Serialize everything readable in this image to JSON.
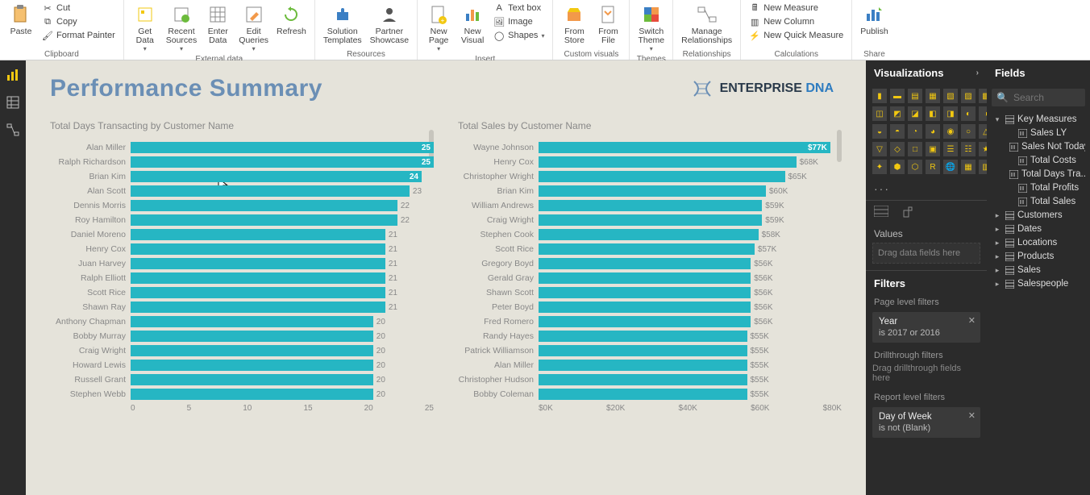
{
  "ribbon": {
    "clipboard": {
      "label": "Clipboard",
      "paste": "Paste",
      "cut": "Cut",
      "copy": "Copy",
      "format_painter": "Format Painter"
    },
    "external_data": {
      "label": "External data",
      "get_data": "Get\nData",
      "recent_sources": "Recent\nSources",
      "enter_data": "Enter\nData",
      "edit_queries": "Edit\nQueries",
      "refresh": "Refresh"
    },
    "resources": {
      "label": "Resources",
      "solution_templates": "Solution\nTemplates",
      "partner_showcase": "Partner\nShowcase"
    },
    "insert": {
      "label": "Insert",
      "new_page": "New\nPage",
      "new_visual": "New\nVisual",
      "text_box": "Text box",
      "image": "Image",
      "shapes": "Shapes"
    },
    "custom_visuals": {
      "label": "Custom visuals",
      "from_store": "From\nStore",
      "from_file": "From\nFile"
    },
    "themes": {
      "label": "Themes",
      "switch_theme": "Switch\nTheme"
    },
    "relationships": {
      "label": "Relationships",
      "manage": "Manage\nRelationships"
    },
    "calculations": {
      "label": "Calculations",
      "new_measure": "New Measure",
      "new_column": "New Column",
      "new_quick": "New Quick Measure"
    },
    "share": {
      "label": "Share",
      "publish": "Publish"
    }
  },
  "canvas": {
    "title": "Performance Summary",
    "logo_main": "ENTERPRISE",
    "logo_accent": "DNA",
    "chart1": {
      "title": "Total Days Transacting by Customer Name",
      "bar_color": "#26b6c3",
      "max": 25,
      "ticks": [
        "0",
        "5",
        "10",
        "15",
        "20",
        "25"
      ],
      "data": [
        {
          "name": "Alan Miller",
          "v": 25,
          "label": "25",
          "inside": true
        },
        {
          "name": "Ralph Richardson",
          "v": 25,
          "label": "25",
          "inside": true
        },
        {
          "name": "Brian Kim",
          "v": 24,
          "label": "24",
          "inside": true
        },
        {
          "name": "Alan Scott",
          "v": 23,
          "label": "23",
          "inside": false
        },
        {
          "name": "Dennis Morris",
          "v": 22,
          "label": "22",
          "inside": false
        },
        {
          "name": "Roy Hamilton",
          "v": 22,
          "label": "22",
          "inside": false
        },
        {
          "name": "Daniel Moreno",
          "v": 21,
          "label": "21",
          "inside": false
        },
        {
          "name": "Henry Cox",
          "v": 21,
          "label": "21",
          "inside": false
        },
        {
          "name": "Juan Harvey",
          "v": 21,
          "label": "21",
          "inside": false
        },
        {
          "name": "Ralph Elliott",
          "v": 21,
          "label": "21",
          "inside": false
        },
        {
          "name": "Scott Rice",
          "v": 21,
          "label": "21",
          "inside": false
        },
        {
          "name": "Shawn Ray",
          "v": 21,
          "label": "21",
          "inside": false
        },
        {
          "name": "Anthony Chapman",
          "v": 20,
          "label": "20",
          "inside": false
        },
        {
          "name": "Bobby Murray",
          "v": 20,
          "label": "20",
          "inside": false
        },
        {
          "name": "Craig Wright",
          "v": 20,
          "label": "20",
          "inside": false
        },
        {
          "name": "Howard Lewis",
          "v": 20,
          "label": "20",
          "inside": false
        },
        {
          "name": "Russell Grant",
          "v": 20,
          "label": "20",
          "inside": false
        },
        {
          "name": "Stephen Webb",
          "v": 20,
          "label": "20",
          "inside": false
        }
      ]
    },
    "chart2": {
      "title": "Total Sales by Customer Name",
      "bar_color": "#26b6c3",
      "max": 80,
      "ticks": [
        "$0K",
        "$20K",
        "$40K",
        "$60K",
        "$80K"
      ],
      "data": [
        {
          "name": "Wayne Johnson",
          "v": 77,
          "label": "$77K",
          "inside": true
        },
        {
          "name": "Henry Cox",
          "v": 68,
          "label": "$68K",
          "inside": false
        },
        {
          "name": "Christopher Wright",
          "v": 65,
          "label": "$65K",
          "inside": false
        },
        {
          "name": "Brian Kim",
          "v": 60,
          "label": "$60K",
          "inside": false
        },
        {
          "name": "William Andrews",
          "v": 59,
          "label": "$59K",
          "inside": false
        },
        {
          "name": "Craig Wright",
          "v": 59,
          "label": "$59K",
          "inside": false
        },
        {
          "name": "Stephen Cook",
          "v": 58,
          "label": "$58K",
          "inside": false
        },
        {
          "name": "Scott Rice",
          "v": 57,
          "label": "$57K",
          "inside": false
        },
        {
          "name": "Gregory Boyd",
          "v": 56,
          "label": "$56K",
          "inside": false
        },
        {
          "name": "Gerald Gray",
          "v": 56,
          "label": "$56K",
          "inside": false
        },
        {
          "name": "Shawn Scott",
          "v": 56,
          "label": "$56K",
          "inside": false
        },
        {
          "name": "Peter Boyd",
          "v": 56,
          "label": "$56K",
          "inside": false
        },
        {
          "name": "Fred Romero",
          "v": 56,
          "label": "$56K",
          "inside": false
        },
        {
          "name": "Randy Hayes",
          "v": 55,
          "label": "$55K",
          "inside": false
        },
        {
          "name": "Patrick Williamson",
          "v": 55,
          "label": "$55K",
          "inside": false
        },
        {
          "name": "Alan Miller",
          "v": 55,
          "label": "$55K",
          "inside": false
        },
        {
          "name": "Christopher Hudson",
          "v": 55,
          "label": "$55K",
          "inside": false
        },
        {
          "name": "Bobby Coleman",
          "v": 55,
          "label": "$55K",
          "inside": false
        }
      ]
    }
  },
  "viz": {
    "title": "Visualizations",
    "values": "Values",
    "drag_fields": "Drag data fields here",
    "filters": "Filters",
    "page_filters": "Page level filters",
    "filter_year_name": "Year",
    "filter_year_cond": "is 2017 or 2016",
    "drill_filters": "Drillthrough filters",
    "drag_drill": "Drag drillthrough fields here",
    "report_filters": "Report level filters",
    "filter_dow_name": "Day of Week",
    "filter_dow_cond": "is not (Blank)"
  },
  "fields": {
    "title": "Fields",
    "search_placeholder": "Search",
    "key_measures": "Key Measures",
    "measures": [
      "Sales LY",
      "Sales Not Today",
      "Total Costs",
      "Total Days Tra...",
      "Total Profits",
      "Total Sales"
    ],
    "tables": [
      "Customers",
      "Dates",
      "Locations",
      "Products",
      "Sales",
      "Salespeople"
    ]
  }
}
